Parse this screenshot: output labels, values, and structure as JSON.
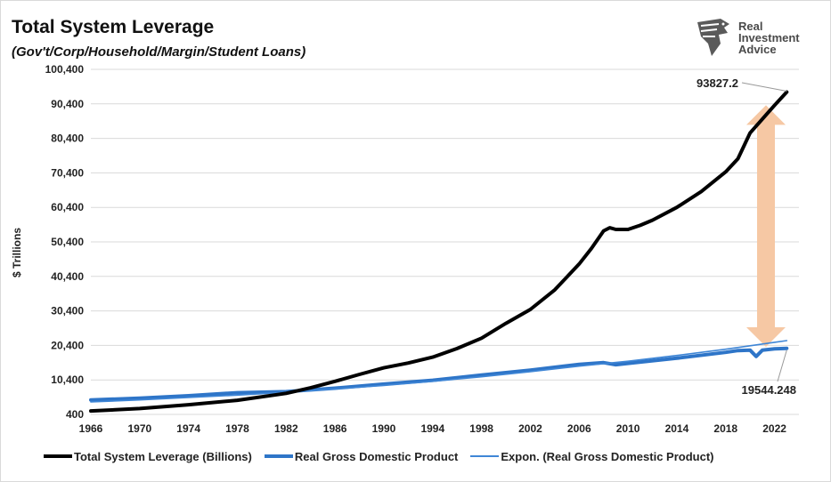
{
  "header": {
    "title": "Total System Leverage",
    "subtitle": "(Gov't/Corp/Household/Margin/Student Loans)"
  },
  "logo": {
    "line1": "Real",
    "line2": "Investment",
    "line3": "Advice",
    "icon": "eagle-head-icon"
  },
  "chart_data": {
    "type": "line",
    "title": "Total System Leverage",
    "subtitle": "(Gov't/Corp/Household/Margin/Student Loans)",
    "ylabel": "$ Trillions",
    "xlabel": "",
    "ylim": [
      400,
      100400
    ],
    "xlim": [
      1966,
      2024
    ],
    "yticks": [
      "100,400",
      "90,400",
      "80,400",
      "70,400",
      "60,400",
      "50,400",
      "40,400",
      "30,400",
      "20,400",
      "10,400",
      "400"
    ],
    "xticks": [
      "1966",
      "1970",
      "1974",
      "1978",
      "1982",
      "1986",
      "1990",
      "1994",
      "1998",
      "2002",
      "2006",
      "2010",
      "2014",
      "2018",
      "2022"
    ],
    "grid": "horizontal",
    "legend_position": "bottom",
    "colors": {
      "leverage": "#000000",
      "gdp": "#2e75c8",
      "trend": "#3f86d6",
      "arrow": "#f6c8a4"
    },
    "series": [
      {
        "name": "Total System Leverage (Billions)",
        "x": [
          1966,
          1970,
          1974,
          1978,
          1982,
          1984,
          1986,
          1988,
          1990,
          1992,
          1994,
          1996,
          1998,
          2000,
          2002,
          2004,
          2006,
          2007,
          2008,
          2008.5,
          2009,
          2010,
          2011,
          2012,
          2014,
          2016,
          2018,
          2019,
          2020,
          2021,
          2022,
          2023
        ],
        "values": [
          1400,
          2100,
          3200,
          4500,
          6500,
          8100,
          10000,
          12000,
          13900,
          15300,
          17000,
          19500,
          22500,
          26800,
          30800,
          36500,
          44000,
          48500,
          53600,
          54500,
          54000,
          54000,
          55200,
          56700,
          60400,
          65000,
          70700,
          74500,
          82000,
          86000,
          90000,
          93827.2
        ]
      },
      {
        "name": "Real Gross Domestic Product",
        "x": [
          1966,
          1970,
          1974,
          1978,
          1982,
          1986,
          1990,
          1994,
          1998,
          2002,
          2006,
          2008,
          2009,
          2010,
          2014,
          2018,
          2019,
          2020,
          2020.5,
          2021,
          2022,
          2023
        ],
        "values": [
          4600,
          5100,
          5800,
          6700,
          7000,
          8000,
          9200,
          10300,
          11800,
          13200,
          14900,
          15400,
          14800,
          15200,
          16700,
          18400,
          18900,
          19000,
          17200,
          19000,
          19400,
          19544.248
        ]
      },
      {
        "name": "Expon. (Real Gross Domestic Product)",
        "x": [
          1966,
          1970,
          1974,
          1978,
          1982,
          1986,
          1990,
          1994,
          1998,
          2002,
          2006,
          2010,
          2014,
          2018,
          2022,
          2023
        ],
        "values": [
          4000,
          4600,
          5300,
          6000,
          6800,
          7800,
          8800,
          10000,
          11300,
          12800,
          14400,
          15800,
          17500,
          19300,
          21300,
          21800
        ]
      }
    ],
    "annotations": [
      "93827.2",
      "19544.248"
    ]
  },
  "legend": [
    {
      "label": "Total System Leverage (Billions)"
    },
    {
      "label": "Real Gross Domestic Product"
    },
    {
      "label": "Expon. (Real Gross Domestic Product)"
    }
  ]
}
